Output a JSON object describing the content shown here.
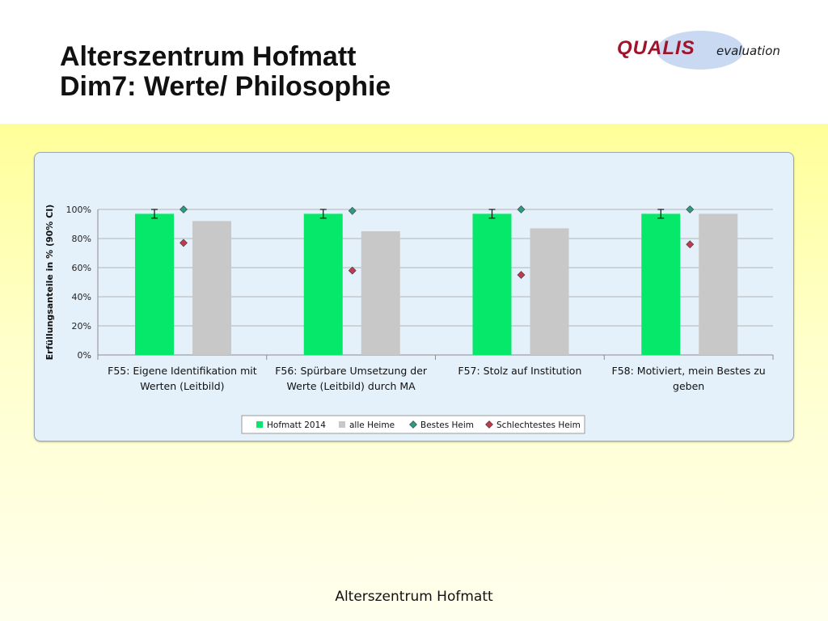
{
  "header": {
    "title_line1": "Alterszentrum Hofmatt",
    "title_line2": "Dim7: Werte/ Philosophie"
  },
  "logo": {
    "word": "QUALIS",
    "sub": "evaluation"
  },
  "footer": {
    "text": "Alterszentrum Hofmatt"
  },
  "chart_data": {
    "type": "bar",
    "ylabel": "Erfüllungsanteile in % (90% CI)",
    "ylim": [
      0,
      100
    ],
    "yticks": [
      0,
      20,
      40,
      60,
      80,
      100
    ],
    "ytick_labels": [
      "0%",
      "20%",
      "40%",
      "60%",
      "80%",
      "100%"
    ],
    "grid": true,
    "legend_position": "bottom",
    "categories": [
      [
        "F55: Eigene Identifikation mit",
        "Werten (Leitbild)"
      ],
      [
        "F56: Spürbare Umsetzung der",
        "Werte (Leitbild) durch MA"
      ],
      [
        "F57: Stolz auf Institution"
      ],
      [
        "F58: Motiviert, mein Bestes zu",
        "geben"
      ]
    ],
    "series": [
      {
        "name": "Hofmatt 2014",
        "kind": "bar",
        "color": "#05e86a",
        "values": [
          97,
          97,
          97,
          97
        ],
        "ci_low": [
          94,
          94,
          94,
          94
        ],
        "ci_high": [
          100,
          100,
          100,
          100
        ]
      },
      {
        "name": "alle Heime",
        "kind": "bar",
        "color": "#c8c8c8",
        "values": [
          92,
          85,
          87,
          97
        ]
      },
      {
        "name": "Bestes Heim",
        "kind": "marker",
        "color": "#2e9a82",
        "values": [
          100,
          99,
          100,
          100
        ]
      },
      {
        "name": "Schlechtestes Heim",
        "kind": "marker",
        "color": "#c0394f",
        "values": [
          77,
          58,
          55,
          76
        ]
      }
    ]
  }
}
